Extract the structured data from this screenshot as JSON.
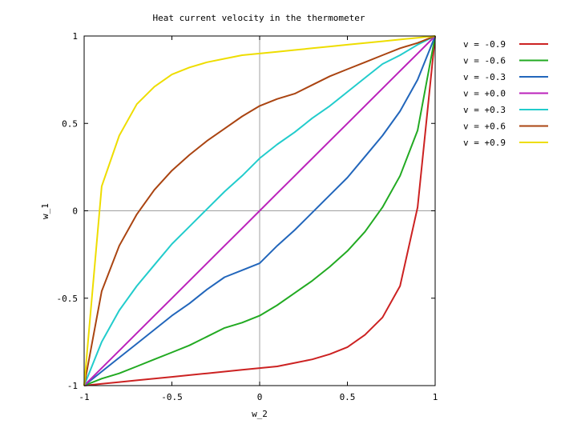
{
  "chart_data": {
    "type": "line",
    "title": "Heat current velocity in the thermometer",
    "xlabel": "w_2",
    "ylabel": "w_1",
    "xlim": [
      -1,
      1
    ],
    "ylim": [
      -1,
      1
    ],
    "x_ticks": [
      {
        "value": -1,
        "label": "-1"
      },
      {
        "value": -0.5,
        "label": "-0.5"
      },
      {
        "value": 0,
        "label": "0"
      },
      {
        "value": 0.5,
        "label": "0.5"
      },
      {
        "value": 1,
        "label": "1"
      }
    ],
    "y_ticks": [
      {
        "value": -1,
        "label": "-1"
      },
      {
        "value": -0.5,
        "label": "-0.5"
      },
      {
        "value": 0,
        "label": "0"
      },
      {
        "value": 0.5,
        "label": "0.5"
      },
      {
        "value": 1,
        "label": "1"
      }
    ],
    "grid": "zero-lines",
    "legend_position": "outside-right",
    "x": [
      -1,
      -0.9,
      -0.8,
      -0.7,
      -0.6,
      -0.5,
      -0.4,
      -0.3,
      -0.2,
      -0.1,
      0,
      0.1,
      0.2,
      0.3,
      0.4,
      0.5,
      0.6,
      0.7,
      0.8,
      0.9,
      1
    ],
    "series": [
      {
        "name": "v = -0.9",
        "color": "#cc2222",
        "values": [
          -1,
          -0.99,
          -0.98,
          -0.97,
          -0.96,
          -0.95,
          -0.94,
          -0.93,
          -0.92,
          -0.91,
          -0.9,
          -0.89,
          -0.87,
          -0.85,
          -0.82,
          -0.78,
          -0.71,
          -0.61,
          -0.43,
          0.02,
          1
        ]
      },
      {
        "name": "v = -0.6",
        "color": "#22aa22",
        "values": [
          -1,
          -0.96,
          -0.93,
          -0.89,
          -0.85,
          -0.81,
          -0.77,
          -0.72,
          -0.67,
          -0.64,
          -0.6,
          -0.54,
          -0.47,
          -0.4,
          -0.32,
          -0.23,
          -0.12,
          0.02,
          0.2,
          0.46,
          1
        ]
      },
      {
        "name": "v = -0.3",
        "color": "#2266bb",
        "values": [
          -1,
          -0.92,
          -0.84,
          -0.76,
          -0.68,
          -0.6,
          -0.53,
          -0.45,
          -0.38,
          -0.34,
          -0.3,
          -0.2,
          -0.11,
          -0.01,
          0.09,
          0.19,
          0.31,
          0.43,
          0.57,
          0.75,
          1
        ]
      },
      {
        "name": "v = +0.0",
        "color": "#bb22bb",
        "values": [
          -1,
          -0.9,
          -0.8,
          -0.7,
          -0.6,
          -0.5,
          -0.4,
          -0.3,
          -0.2,
          -0.1,
          0,
          0.1,
          0.2,
          0.3,
          0.4,
          0.5,
          0.6,
          0.7,
          0.8,
          0.9,
          1
        ]
      },
      {
        "name": "v = +0.3",
        "color": "#22cccc",
        "values": [
          -1,
          -0.75,
          -0.57,
          -0.43,
          -0.31,
          -0.19,
          -0.09,
          0.01,
          0.11,
          0.2,
          0.3,
          0.38,
          0.45,
          0.53,
          0.6,
          0.68,
          0.76,
          0.84,
          0.89,
          0.95,
          1
        ]
      },
      {
        "name": "v = +0.6",
        "color": "#aa4411",
        "values": [
          -1,
          -0.46,
          -0.2,
          -0.02,
          0.12,
          0.23,
          0.32,
          0.4,
          0.47,
          0.54,
          0.6,
          0.64,
          0.67,
          0.72,
          0.77,
          0.81,
          0.85,
          0.89,
          0.93,
          0.96,
          1
        ]
      },
      {
        "name": "v = +0.9",
        "color": "#eedd00",
        "values": [
          -1,
          0.14,
          0.43,
          0.61,
          0.71,
          0.78,
          0.82,
          0.85,
          0.87,
          0.89,
          0.9,
          0.91,
          0.92,
          0.93,
          0.94,
          0.95,
          0.96,
          0.97,
          0.98,
          0.99,
          1
        ]
      }
    ]
  }
}
